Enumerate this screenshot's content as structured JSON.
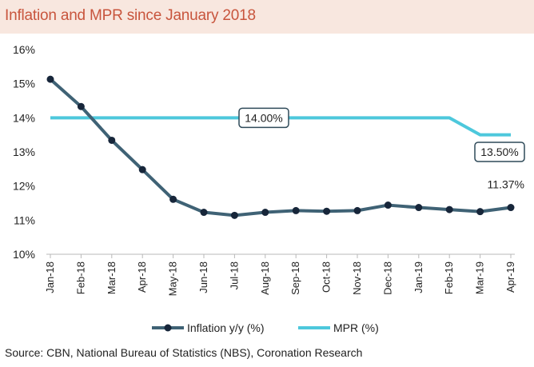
{
  "header": {
    "title": "Inflation and MPR since January 2018"
  },
  "footer": {
    "source": "Source: CBN, National Bureau of Statistics (NBS), Coronation Research"
  },
  "colors": {
    "inflation": "#3f6275",
    "mpr": "#4dc8dc",
    "title": "#c8553d",
    "title_bg": "#f8e7df"
  },
  "chart_data": {
    "type": "line",
    "title": "Inflation and MPR since January 2018",
    "categories": [
      "Jan-18",
      "Feb-18",
      "Mar-18",
      "Apr-18",
      "May-18",
      "Jun-18",
      "Jul-18",
      "Aug-18",
      "Sep-18",
      "Oct-18",
      "Nov-18",
      "Dec-18",
      "Jan-19",
      "Feb-19",
      "Mar-19",
      "Apr-19"
    ],
    "ylim": [
      10,
      16
    ],
    "yticks": [
      "10%",
      "11%",
      "12%",
      "13%",
      "14%",
      "15%",
      "16%"
    ],
    "grid": false,
    "legend": "bottom-center",
    "series": [
      {
        "name": "Inflation y/y (%)",
        "color": "#3f6275",
        "markers": true,
        "values": [
          15.13,
          14.33,
          13.34,
          12.48,
          11.61,
          11.23,
          11.14,
          11.23,
          11.28,
          11.26,
          11.28,
          11.44,
          11.37,
          11.31,
          11.25,
          11.37
        ]
      },
      {
        "name": "MPR (%)",
        "color": "#4dc8dc",
        "markers": false,
        "values": [
          14,
          14,
          14,
          14,
          14,
          14,
          14,
          14,
          14,
          14,
          14,
          14,
          14,
          14,
          13.5,
          13.5
        ]
      }
    ],
    "annotations": [
      {
        "text": "14.00%",
        "series": "MPR (%)",
        "boxed": true
      },
      {
        "text": "13.50%",
        "series": "MPR (%)",
        "boxed": true
      },
      {
        "text": "11.37%",
        "series": "Inflation y/y (%)",
        "boxed": false
      }
    ]
  }
}
